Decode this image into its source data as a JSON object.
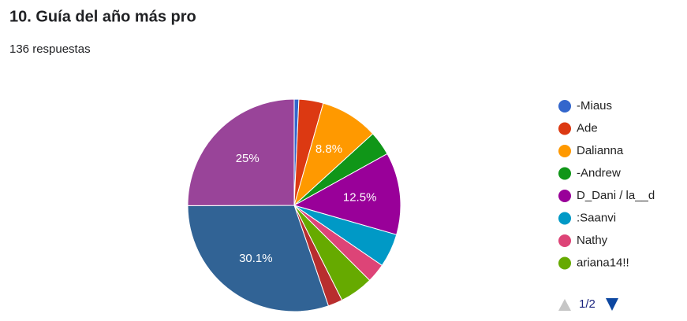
{
  "chart_data": {
    "type": "pie",
    "title": "10. Guía del año más pro",
    "subtitle": "136 respuestas",
    "categories": [
      "-Miaus",
      "Ade",
      "Dalianna",
      "-Andrew",
      "D_Dani / la__d",
      ":Saanvi",
      "Nathy",
      "ariana14!!",
      null,
      null,
      null
    ],
    "values": [
      0.7,
      3.7,
      8.8,
      3.7,
      12.5,
      5.1,
      2.9,
      5.1,
      2.2,
      30.1,
      25
    ],
    "value_labels": [
      null,
      null,
      "8.8%",
      null,
      "12.5%",
      null,
      null,
      null,
      null,
      "30.1%",
      "25%"
    ],
    "colors": [
      "#3366cc",
      "#dc3912",
      "#ff9900",
      "#109618",
      "#990099",
      "#0099c6",
      "#dd4477",
      "#66aa00",
      "#b82e2e",
      "#316395",
      "#994499"
    ],
    "legend_page": "1/2"
  }
}
